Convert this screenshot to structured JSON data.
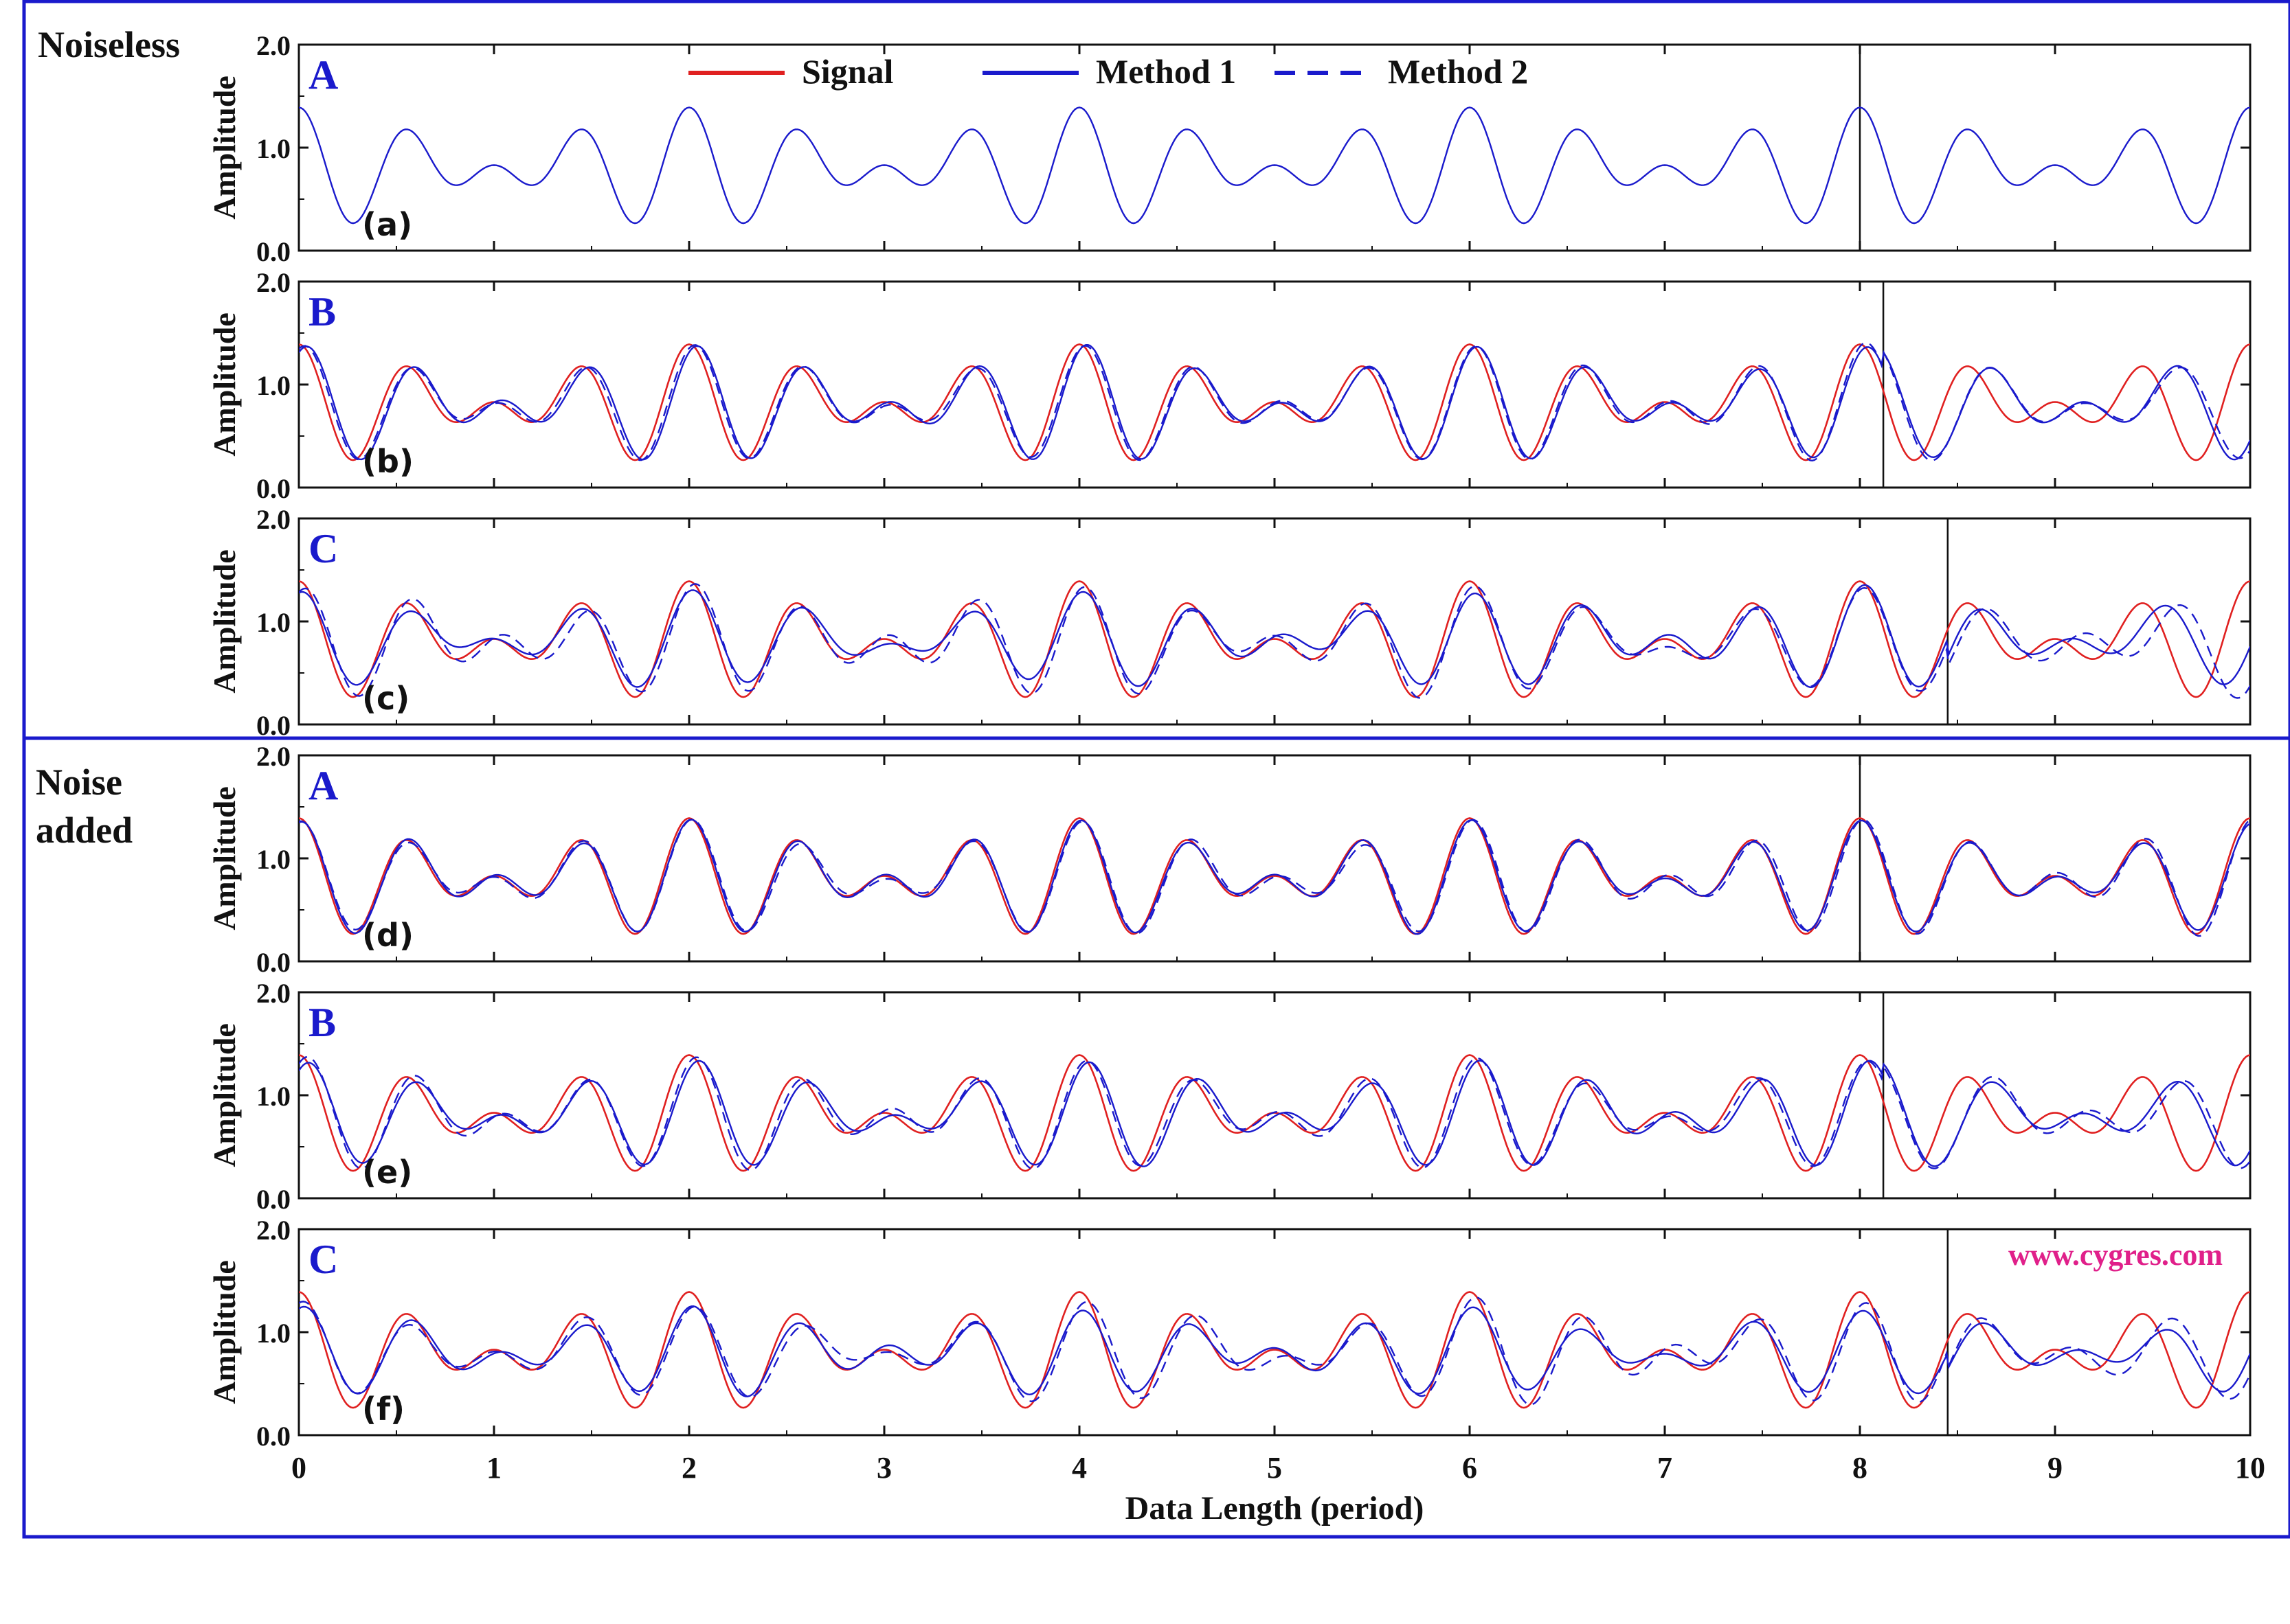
{
  "figure": {
    "group_labels": [
      [
        "Noiseless"
      ],
      [
        "Noise",
        "added"
      ]
    ],
    "legend": [
      {
        "label": "Signal",
        "color": "#e02020",
        "dash": false
      },
      {
        "label": "Method 1",
        "color": "#1a1acc",
        "dash": false
      },
      {
        "label": "Method 2",
        "color": "#1a1acc",
        "dash": true
      }
    ],
    "watermark": "www.cygres.com",
    "watermark_color": "#e0208a",
    "frame_color": "#1a1acc",
    "panel_letter_color": "#1a1acc"
  },
  "chart_data": [
    {
      "type": "line",
      "id": "a",
      "method": "A",
      "tag": "(a)",
      "ylabel": "Amplitude",
      "xlabel": "",
      "xlim": [
        0,
        10
      ],
      "ylim": [
        0,
        2
      ],
      "x_ticks": [
        "0",
        "1",
        "2",
        "3",
        "4",
        "5",
        "6",
        "7",
        "8",
        "9",
        "10"
      ],
      "y_ticks": [
        "0.0",
        "1.0",
        "2.0"
      ],
      "x_tick_labels_shown": false,
      "forecast_start": 8.0,
      "noise": false,
      "signal": {
        "name": "Signal",
        "period": 2,
        "offset": 0.8,
        "harmonics": [
          {
            "n": 3,
            "amp": 0.28,
            "phase": 1.5708
          },
          {
            "n": 4,
            "amp": 0.31,
            "phase": 1.5708
          }
        ]
      },
      "series": [
        {
          "name": "Method 1",
          "shift": 0,
          "amp_scale": 1.0,
          "dc": 0,
          "noise_amp": 0
        },
        {
          "name": "Method 2",
          "shift": 0,
          "amp_scale": 1.0,
          "dc": 0,
          "noise_amp": 0
        }
      ]
    },
    {
      "type": "line",
      "id": "b",
      "method": "B",
      "tag": "(b)",
      "ylabel": "Amplitude",
      "xlabel": "",
      "xlim": [
        0,
        10
      ],
      "ylim": [
        0,
        2
      ],
      "x_ticks": [
        "0",
        "1",
        "2",
        "3",
        "4",
        "5",
        "6",
        "7",
        "8",
        "9",
        "10"
      ],
      "y_ticks": [
        "0.0",
        "1.0",
        "2.0"
      ],
      "x_tick_labels_shown": false,
      "forecast_start": 8.12,
      "noise": false,
      "signal": {
        "name": "Signal",
        "period": 2,
        "offset": 0.8,
        "harmonics": [
          {
            "n": 3,
            "amp": 0.28,
            "phase": 1.5708
          },
          {
            "n": 4,
            "amp": 0.31,
            "phase": 1.5708
          }
        ]
      },
      "series": [
        {
          "name": "Method 1",
          "shift": 0.04,
          "amp_scale": 0.97,
          "dc": 0,
          "noise_amp": 0.02,
          "late_shift": 0.12
        },
        {
          "name": "Method 2",
          "shift": 0.03,
          "amp_scale": 0.99,
          "dc": 0,
          "noise_amp": 0.03,
          "late_shift": 0.16
        }
      ]
    },
    {
      "type": "line",
      "id": "c",
      "method": "C",
      "tag": "(c)",
      "ylabel": "Amplitude",
      "xlabel": "",
      "xlim": [
        0,
        10
      ],
      "ylim": [
        0,
        2
      ],
      "x_ticks": [
        "0",
        "1",
        "2",
        "3",
        "4",
        "5",
        "6",
        "7",
        "8",
        "9",
        "10"
      ],
      "y_ticks": [
        "0.0",
        "1.0",
        "2.0"
      ],
      "x_tick_labels_shown": false,
      "forecast_start": 8.45,
      "noise": false,
      "signal": {
        "name": "Signal",
        "period": 2,
        "offset": 0.8,
        "harmonics": [
          {
            "n": 3,
            "amp": 0.28,
            "phase": 1.5708
          },
          {
            "n": 4,
            "amp": 0.31,
            "phase": 1.5708
          }
        ]
      },
      "series": [
        {
          "name": "Method 1",
          "shift": 0.02,
          "amp_scale": 0.82,
          "dc": 0.02,
          "noise_amp": 0.07,
          "late_shift": 0.1
        },
        {
          "name": "Method 2",
          "shift": 0.03,
          "amp_scale": 0.9,
          "dc": 0,
          "noise_amp": 0.09,
          "late_shift": 0.14
        }
      ]
    },
    {
      "type": "line",
      "id": "d",
      "method": "A",
      "tag": "(d)",
      "ylabel": "Amplitude",
      "xlabel": "",
      "xlim": [
        0,
        10
      ],
      "ylim": [
        0,
        2
      ],
      "x_ticks": [
        "0",
        "1",
        "2",
        "3",
        "4",
        "5",
        "6",
        "7",
        "8",
        "9",
        "10"
      ],
      "y_ticks": [
        "0.0",
        "1.0",
        "2.0"
      ],
      "x_tick_labels_shown": false,
      "forecast_start": 8.0,
      "noise": true,
      "signal": {
        "name": "Signal",
        "period": 2,
        "offset": 0.8,
        "harmonics": [
          {
            "n": 3,
            "amp": 0.28,
            "phase": 1.5708
          },
          {
            "n": 4,
            "amp": 0.31,
            "phase": 1.5708
          }
        ]
      },
      "series": [
        {
          "name": "Method 1",
          "shift": 0.01,
          "amp_scale": 0.96,
          "dc": 0,
          "noise_amp": 0.03
        },
        {
          "name": "Method 2",
          "shift": 0.015,
          "amp_scale": 0.97,
          "dc": 0,
          "noise_amp": 0.04
        }
      ]
    },
    {
      "type": "line",
      "id": "e",
      "method": "B",
      "tag": "(e)",
      "ylabel": "Amplitude",
      "xlabel": "",
      "xlim": [
        0,
        10
      ],
      "ylim": [
        0,
        2
      ],
      "x_ticks": [
        "0",
        "1",
        "2",
        "3",
        "4",
        "5",
        "6",
        "7",
        "8",
        "9",
        "10"
      ],
      "y_ticks": [
        "0.0",
        "1.0",
        "2.0"
      ],
      "x_tick_labels_shown": false,
      "forecast_start": 8.12,
      "noise": true,
      "signal": {
        "name": "Signal",
        "period": 2,
        "offset": 0.8,
        "harmonics": [
          {
            "n": 3,
            "amp": 0.28,
            "phase": 1.5708
          },
          {
            "n": 4,
            "amp": 0.31,
            "phase": 1.5708
          }
        ]
      },
      "series": [
        {
          "name": "Method 1",
          "shift": 0.05,
          "amp_scale": 0.9,
          "dc": 0,
          "noise_amp": 0.03,
          "late_shift": 0.12
        },
        {
          "name": "Method 2",
          "shift": 0.04,
          "amp_scale": 0.93,
          "dc": 0,
          "noise_amp": 0.05,
          "late_shift": 0.15
        }
      ]
    },
    {
      "type": "line",
      "id": "f",
      "method": "C",
      "tag": "(f)",
      "ylabel": "Amplitude",
      "xlabel": "Data Length (period)",
      "xlim": [
        0,
        10
      ],
      "ylim": [
        0,
        2
      ],
      "x_ticks": [
        "0",
        "1",
        "2",
        "3",
        "4",
        "5",
        "6",
        "7",
        "8",
        "9",
        "10"
      ],
      "y_ticks": [
        "0.0",
        "1.0",
        "2.0"
      ],
      "x_tick_labels_shown": true,
      "forecast_start": 8.45,
      "noise": true,
      "signal": {
        "name": "Signal",
        "period": 2,
        "offset": 0.8,
        "harmonics": [
          {
            "n": 3,
            "amp": 0.28,
            "phase": 1.5708
          },
          {
            "n": 4,
            "amp": 0.31,
            "phase": 1.5708
          }
        ]
      },
      "series": [
        {
          "name": "Method 1",
          "shift": 0.02,
          "amp_scale": 0.72,
          "dc": 0.0,
          "noise_amp": 0.06,
          "late_shift": 0.08
        },
        {
          "name": "Method 2",
          "shift": 0.03,
          "amp_scale": 0.85,
          "dc": 0,
          "noise_amp": 0.09,
          "late_shift": 0.12
        }
      ]
    }
  ]
}
